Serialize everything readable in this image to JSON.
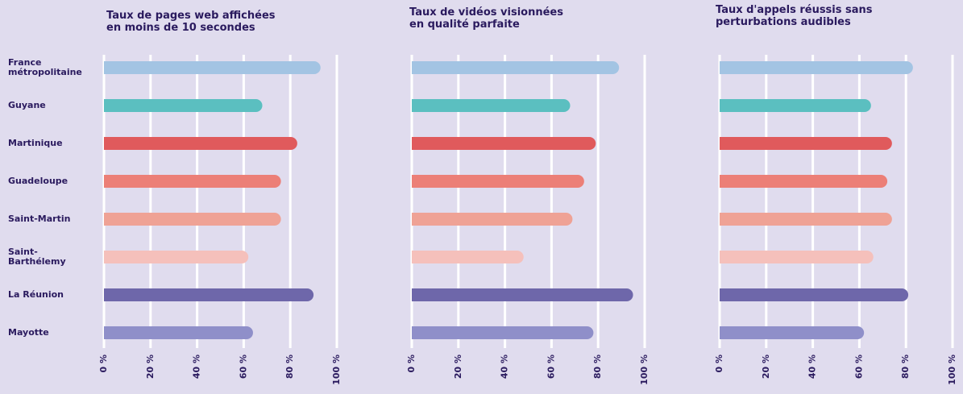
{
  "chart_data": [
    {
      "type": "bar",
      "orientation": "horizontal",
      "title": "Taux de pages web affichées\nen moins de 10 secondes",
      "categories": [
        "France métropolitaine",
        "Guyane",
        "Martinique",
        "Guadeloupe",
        "Saint-Martin",
        "Saint-Barthélemy",
        "La Réunion",
        "Mayotte"
      ],
      "values": [
        93,
        68,
        83,
        76,
        76,
        62,
        90,
        64
      ],
      "colors": [
        "#a3c4e3",
        "#5bbfc0",
        "#e05a5c",
        "#ec7f77",
        "#efa295",
        "#f5c0bb",
        "#6e67aa",
        "#8f8fc9"
      ],
      "xlim": [
        0,
        100
      ],
      "xticks": [
        {
          "value": 0,
          "label": "0 %"
        },
        {
          "value": 20,
          "label": "20 %"
        },
        {
          "value": 40,
          "label": "40 %"
        },
        {
          "value": 60,
          "label": "60 %"
        },
        {
          "value": 80,
          "label": "80 %"
        },
        {
          "value": 100,
          "label": "100 %"
        }
      ],
      "grid": true
    },
    {
      "type": "bar",
      "orientation": "horizontal",
      "title": "Taux de vidéos visionnées\nen qualité parfaite",
      "values": [
        89,
        68,
        79,
        74,
        69,
        48,
        95,
        78
      ],
      "colors": [
        "#a3c4e3",
        "#5bbfc0",
        "#e05a5c",
        "#ec7f77",
        "#efa295",
        "#f5c0bb",
        "#6e67aa",
        "#8f8fc9"
      ],
      "xlim": [
        0,
        100
      ],
      "xticks": [
        {
          "value": 0,
          "label": "0 %"
        },
        {
          "value": 20,
          "label": "20 %"
        },
        {
          "value": 40,
          "label": "40 %"
        },
        {
          "value": 60,
          "label": "60 %"
        },
        {
          "value": 80,
          "label": "80 %"
        },
        {
          "value": 100,
          "label": "100 %"
        }
      ],
      "grid": true
    },
    {
      "type": "bar",
      "orientation": "horizontal",
      "title": "Taux d'appels réussis sans\nperturbations audibles",
      "values": [
        83,
        65,
        74,
        72,
        74,
        66,
        81,
        62
      ],
      "colors": [
        "#a3c4e3",
        "#5bbfc0",
        "#e05a5c",
        "#ec7f77",
        "#efa295",
        "#f5c0bb",
        "#6e67aa",
        "#8f8fc9"
      ],
      "xlim": [
        0,
        100
      ],
      "xticks": [
        {
          "value": 0,
          "label": "0 %"
        },
        {
          "value": 20,
          "label": "20 %"
        },
        {
          "value": 40,
          "label": "40 %"
        },
        {
          "value": 60,
          "label": "60 %"
        },
        {
          "value": 80,
          "label": "80 %"
        },
        {
          "value": 100,
          "label": "100 %"
        }
      ],
      "grid": true
    }
  ]
}
